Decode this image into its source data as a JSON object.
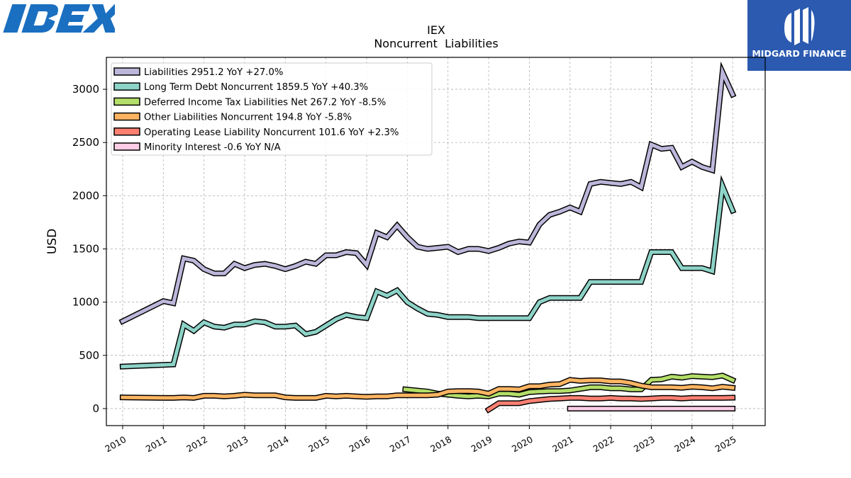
{
  "logos": {
    "left_text": "IDEX",
    "right_text": "MIDGARD FINANCE"
  },
  "colors": {
    "background": "#ffffff",
    "grid": "#b0b0b0",
    "brand_blue": "#1a6fc0",
    "brand_box": "#2b5ab0"
  },
  "chart_data": {
    "type": "line",
    "title": "IEX",
    "subtitle": "Noncurrent  Liabilities",
    "xlabel": "",
    "ylabel": "USD",
    "xlim": [
      2009.6,
      2025.8
    ],
    "ylim": [
      -160,
      3300
    ],
    "x_ticks": [
      2010,
      2011,
      2012,
      2013,
      2014,
      2015,
      2016,
      2017,
      2018,
      2019,
      2020,
      2021,
      2022,
      2023,
      2024,
      2025
    ],
    "y_ticks": [
      0,
      500,
      1000,
      1500,
      2000,
      2500,
      3000
    ],
    "grid": true,
    "legend_position": "top-left",
    "series": [
      {
        "name": "Liabilities",
        "legend": "Liabilities  2951.2 YoY +27.0%",
        "color": "#bcb7da",
        "x": [
          2010.0,
          2011.0,
          2011.25,
          2011.5,
          2011.75,
          2012.0,
          2012.25,
          2012.5,
          2012.75,
          2013.0,
          2013.25,
          2013.5,
          2013.75,
          2014.0,
          2014.25,
          2014.5,
          2014.75,
          2015.0,
          2015.25,
          2015.5,
          2015.75,
          2016.0,
          2016.25,
          2016.5,
          2016.75,
          2017.0,
          2017.25,
          2017.5,
          2017.75,
          2018.0,
          2018.25,
          2018.5,
          2018.75,
          2019.0,
          2019.25,
          2019.5,
          2019.75,
          2020.0,
          2020.25,
          2020.5,
          2020.75,
          2021.0,
          2021.25,
          2021.5,
          2021.75,
          2022.0,
          2022.25,
          2022.5,
          2022.75,
          2023.0,
          2023.25,
          2023.5,
          2023.75,
          2024.0,
          2024.25,
          2024.5,
          2024.75,
          2025.0
        ],
        "values": [
          820,
          1010,
          990,
          1410,
          1390,
          1310,
          1270,
          1270,
          1360,
          1320,
          1350,
          1360,
          1340,
          1310,
          1340,
          1380,
          1360,
          1440,
          1440,
          1470,
          1460,
          1350,
          1650,
          1610,
          1720,
          1610,
          1520,
          1500,
          1510,
          1520,
          1470,
          1500,
          1500,
          1480,
          1510,
          1550,
          1570,
          1560,
          1730,
          1820,
          1850,
          1890,
          1850,
          2110,
          2130,
          2120,
          2110,
          2130,
          2080,
          2480,
          2440,
          2450,
          2270,
          2320,
          2270,
          2240,
          3160,
          2951
        ]
      },
      {
        "name": "Long Term Debt Noncurrent",
        "legend": "Long Term Debt Noncurrent  1859.5 YoY +40.3%",
        "color": "#8dd3c7",
        "x": [
          2010.0,
          2011.0,
          2011.25,
          2011.5,
          2011.75,
          2012.0,
          2012.25,
          2012.5,
          2012.75,
          2013.0,
          2013.25,
          2013.5,
          2013.75,
          2014.0,
          2014.25,
          2014.5,
          2014.75,
          2015.0,
          2015.25,
          2015.5,
          2015.75,
          2016.0,
          2016.25,
          2016.5,
          2016.75,
          2017.0,
          2017.25,
          2017.5,
          2017.75,
          2018.0,
          2018.25,
          2018.5,
          2018.75,
          2019.0,
          2019.25,
          2019.5,
          2019.75,
          2020.0,
          2020.25,
          2020.5,
          2020.75,
          2021.0,
          2021.25,
          2021.5,
          2021.75,
          2022.0,
          2022.25,
          2022.5,
          2022.75,
          2023.0,
          2023.25,
          2023.5,
          2023.75,
          2024.0,
          2024.25,
          2024.5,
          2024.75,
          2025.0
        ],
        "values": [
          395,
          410,
          415,
          790,
          730,
          810,
          770,
          760,
          790,
          790,
          820,
          810,
          770,
          770,
          780,
          700,
          720,
          780,
          840,
          880,
          860,
          850,
          1100,
          1060,
          1110,
          1000,
          940,
          890,
          880,
          860,
          860,
          860,
          850,
          850,
          850,
          850,
          850,
          850,
          1000,
          1040,
          1040,
          1040,
          1040,
          1190,
          1190,
          1190,
          1190,
          1190,
          1190,
          1470,
          1470,
          1470,
          1320,
          1320,
          1320,
          1290,
          2090,
          1860
        ]
      },
      {
        "name": "Deferred Income Tax Liabilities Net",
        "legend": "Deferred Income Tax Liabilities Net  267.2 YoY -8.5%",
        "color": "#b3de69",
        "x": [
          2016.95,
          2017.5,
          2017.75,
          2018.0,
          2018.25,
          2018.5,
          2018.75,
          2019.0,
          2019.25,
          2019.5,
          2019.75,
          2020.0,
          2020.25,
          2020.5,
          2020.75,
          2021.0,
          2021.25,
          2021.5,
          2021.75,
          2022.0,
          2022.25,
          2022.5,
          2022.75,
          2023.0,
          2023.25,
          2023.5,
          2023.75,
          2024.0,
          2024.25,
          2024.5,
          2024.75,
          2025.0
        ],
        "values": [
          180,
          160,
          140,
          130,
          120,
          115,
          120,
          115,
          140,
          140,
          130,
          155,
          160,
          165,
          165,
          170,
          185,
          200,
          200,
          190,
          190,
          180,
          180,
          270,
          275,
          300,
          290,
          305,
          300,
          295,
          310,
          267
        ]
      },
      {
        "name": "Other Liabilities Noncurrent",
        "legend": "Other Liabilities Noncurrent  194.8 YoY -5.8%",
        "color": "#fdb462",
        "x": [
          2010.0,
          2011.0,
          2011.25,
          2011.5,
          2011.75,
          2012.0,
          2012.25,
          2012.5,
          2012.75,
          2013.0,
          2013.25,
          2013.5,
          2013.75,
          2014.0,
          2014.25,
          2014.5,
          2014.75,
          2015.0,
          2015.25,
          2015.5,
          2015.75,
          2016.0,
          2016.25,
          2016.5,
          2016.75,
          2017.0,
          2017.25,
          2017.5,
          2017.75,
          2018.0,
          2018.25,
          2018.5,
          2018.75,
          2019.0,
          2019.25,
          2019.5,
          2019.75,
          2020.0,
          2020.25,
          2020.5,
          2020.75,
          2021.0,
          2021.25,
          2021.5,
          2021.75,
          2022.0,
          2022.25,
          2022.5,
          2022.75,
          2023.0,
          2023.25,
          2023.5,
          2023.75,
          2024.0,
          2024.25,
          2024.5,
          2024.75,
          2025.0
        ],
        "values": [
          105,
          100,
          100,
          105,
          100,
          120,
          120,
          115,
          120,
          130,
          125,
          125,
          125,
          105,
          100,
          100,
          100,
          120,
          115,
          120,
          115,
          110,
          115,
          115,
          125,
          125,
          125,
          125,
          130,
          160,
          165,
          165,
          160,
          140,
          185,
          185,
          180,
          210,
          210,
          225,
          230,
          270,
          260,
          265,
          265,
          255,
          255,
          240,
          215,
          200,
          200,
          200,
          195,
          205,
          200,
          190,
          205,
          195
        ]
      },
      {
        "name": "Operating Lease Liability Noncurrent",
        "legend": "Operating Lease Liability Noncurrent  101.6 YoY +2.3%",
        "color": "#fb8072",
        "x": [
          2019.0,
          2019.25,
          2019.5,
          2019.75,
          2020.0,
          2020.25,
          2020.5,
          2020.75,
          2021.0,
          2021.25,
          2021.5,
          2021.75,
          2022.0,
          2022.25,
          2022.5,
          2022.75,
          2023.0,
          2023.25,
          2023.5,
          2023.75,
          2024.0,
          2024.25,
          2024.5,
          2024.75,
          2025.0
        ],
        "values": [
          -10,
          50,
          50,
          50,
          70,
          80,
          90,
          95,
          100,
          100,
          95,
          95,
          100,
          95,
          95,
          90,
          95,
          100,
          100,
          95,
          100,
          100,
          100,
          100,
          102
        ]
      },
      {
        "name": "Minority Interest",
        "legend": "Minority Interest  -0.6 YoY N/A",
        "color": "#fccde5",
        "x": [
          2021.0,
          2021.25,
          2021.5,
          2021.75,
          2022.0,
          2022.25,
          2022.5,
          2022.75,
          2023.0,
          2023.25,
          2023.5,
          2023.75,
          2024.0,
          2024.25,
          2024.5,
          2024.75,
          2025.0
        ],
        "values": [
          0,
          0,
          0,
          0,
          0,
          0,
          0,
          0,
          0,
          0,
          0,
          0,
          0,
          0,
          0,
          0,
          -0.6
        ]
      }
    ]
  }
}
